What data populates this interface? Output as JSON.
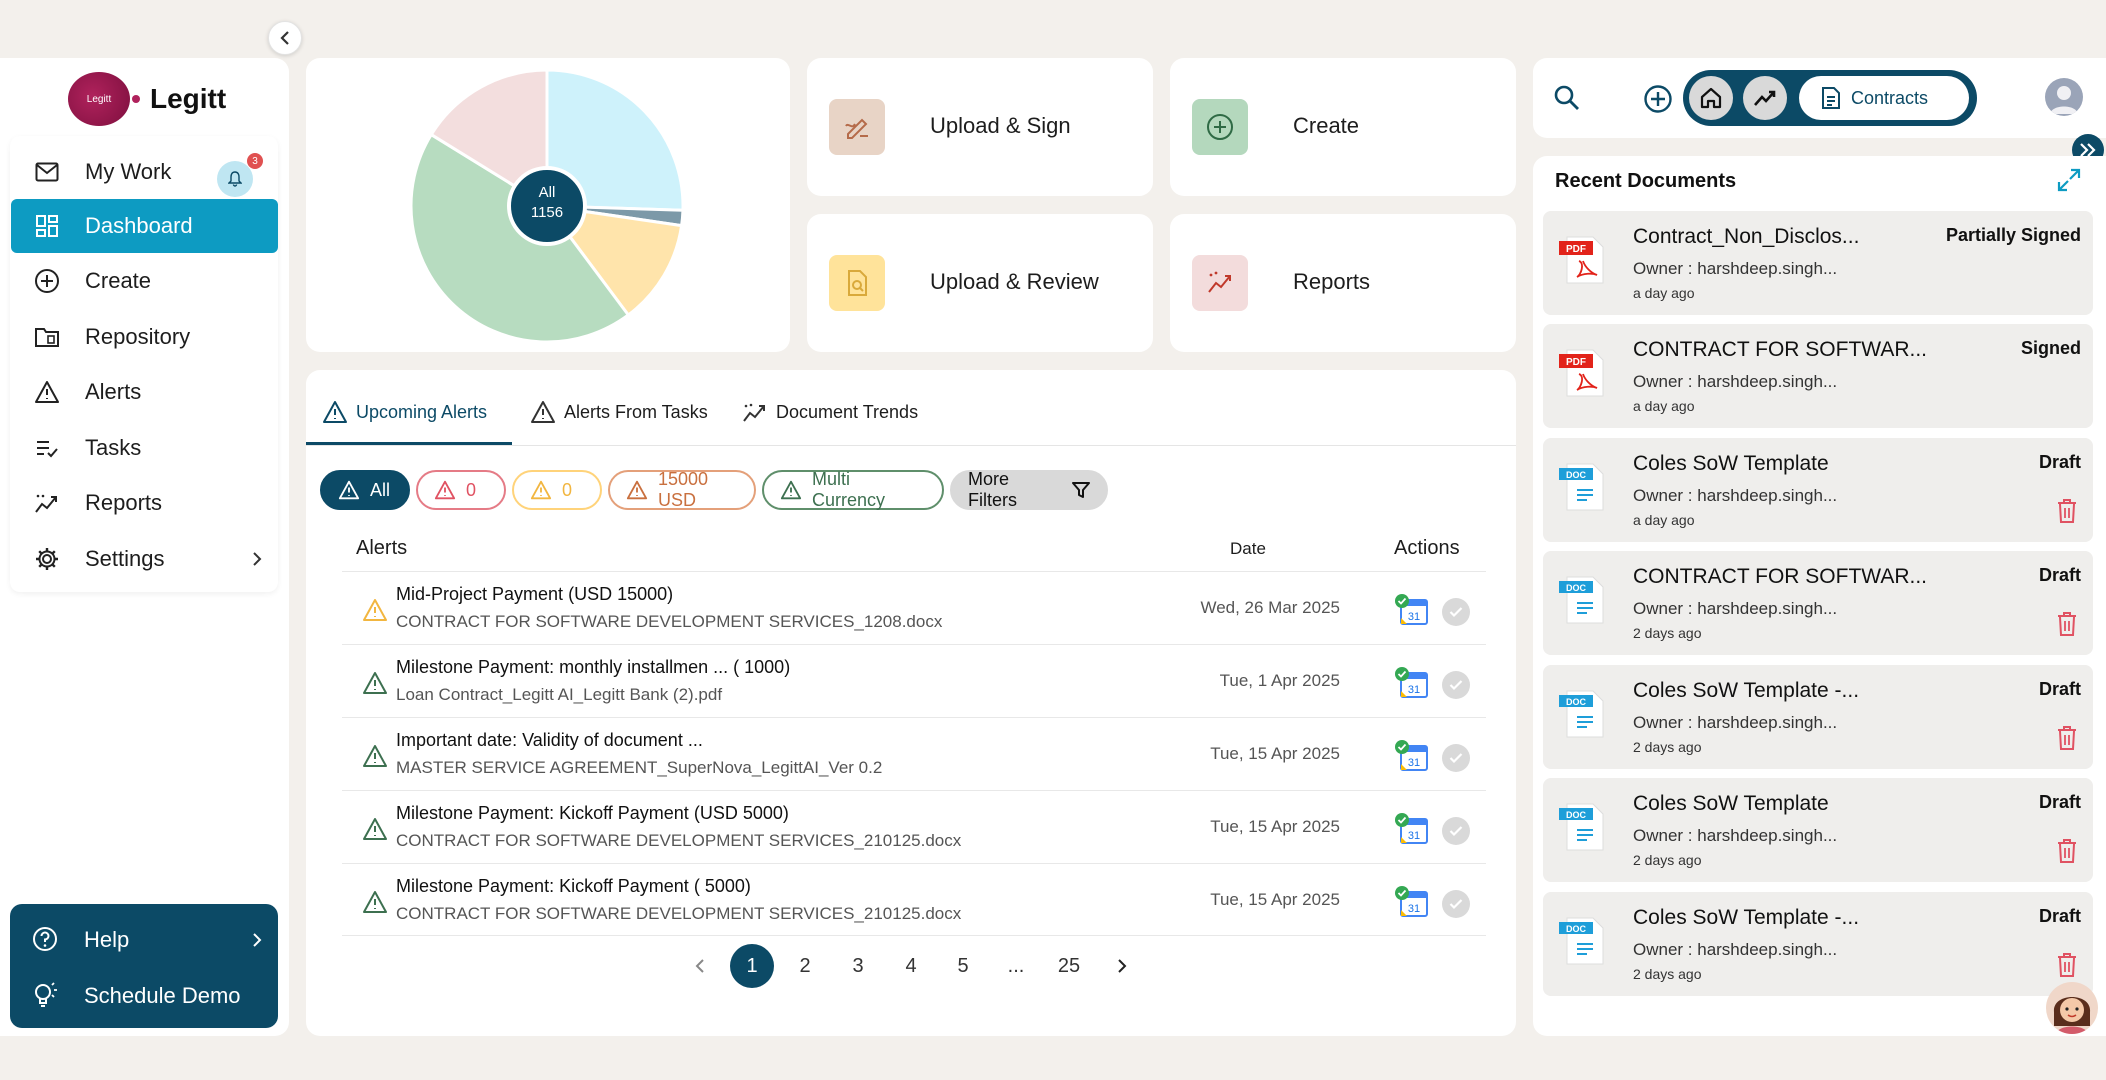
{
  "app": {
    "name": "Legitt",
    "logo_text": "Legitt"
  },
  "sidebar": {
    "items": [
      {
        "label": "My Work",
        "icon": "mail-icon",
        "badge": "3"
      },
      {
        "label": "Dashboard",
        "icon": "dashboard-icon",
        "active": true
      },
      {
        "label": "Create",
        "icon": "plus-circle-icon"
      },
      {
        "label": "Repository",
        "icon": "folder-icon"
      },
      {
        "label": "Alerts",
        "icon": "warning-icon"
      },
      {
        "label": "Tasks",
        "icon": "tasks-icon"
      },
      {
        "label": "Reports",
        "icon": "trend-icon"
      },
      {
        "label": "Settings",
        "icon": "gear-icon"
      }
    ],
    "help_label": "Help",
    "demo_label": "Schedule Demo"
  },
  "pie": {
    "center_line1": "All",
    "center_line2": "1156",
    "slices": [
      {
        "value": 0.255,
        "color": "#cef2fb"
      },
      {
        "value": 0.018,
        "color": "#7c99a8"
      },
      {
        "value": 0.125,
        "color": "#ffe4ab"
      },
      {
        "value": 0.44,
        "color": "#b7dcc0"
      },
      {
        "value": 0.162,
        "color": "#f3dede"
      }
    ]
  },
  "quick_actions": {
    "upload_sign": "Upload & Sign",
    "create": "Create",
    "upload_review": "Upload & Review",
    "reports": "Reports"
  },
  "tabs": [
    "Upcoming Alerts",
    "Alerts From Tasks",
    "Document Trends"
  ],
  "chips": [
    "All",
    "0",
    "0",
    "15000 USD",
    "Multi Currency",
    "More Filters"
  ],
  "table": {
    "headers": {
      "alerts": "Alerts",
      "date": "Date",
      "actions": "Actions"
    },
    "rows": [
      {
        "title": "Mid-Project Payment",
        "amount": "(USD 15000)",
        "file": "CONTRACT FOR SOFTWARE DEVELOPMENT SERVICES_1208.docx",
        "date": "Wed, 26 Mar 2025",
        "severity": "yellow"
      },
      {
        "title": "Milestone Payment: monthly installmen ...",
        "amount": "( 1000)",
        "file": "Loan Contract_Legitt AI_Legitt Bank (2).pdf",
        "date": "Tue, 1 Apr 2025",
        "severity": "green"
      },
      {
        "title": "Important date: Validity of document ...",
        "amount": "",
        "file": "MASTER SERVICE AGREEMENT_SuperNova_LegittAI_Ver 0.2",
        "date": "Tue, 15 Apr 2025",
        "severity": "green"
      },
      {
        "title": "Milestone Payment: Kickoff Payment",
        "amount": "(USD 5000)",
        "file": "CONTRACT FOR SOFTWARE DEVELOPMENT SERVICES_210125.docx",
        "date": "Tue, 15 Apr 2025",
        "severity": "green"
      },
      {
        "title": "Milestone Payment: Kickoff Payment",
        "amount": "( 5000)",
        "file": "CONTRACT FOR SOFTWARE DEVELOPMENT SERVICES_210125.docx",
        "date": "Tue, 15 Apr 2025",
        "severity": "green"
      }
    ]
  },
  "pagination": [
    "1",
    "2",
    "3",
    "4",
    "5",
    "...",
    "25"
  ],
  "topbar": {
    "contracts_label": "Contracts"
  },
  "recent": {
    "title": "Recent Documents",
    "docs": [
      {
        "name": "Contract_Non_Disclos...",
        "owner": "Owner : harshdeep.singh...",
        "ago": "a day ago",
        "status": "Partially Signed",
        "type": "PDF"
      },
      {
        "name": "CONTRACT FOR SOFTWAR...",
        "owner": "Owner : harshdeep.singh...",
        "ago": "a day ago",
        "status": "Signed",
        "type": "PDF"
      },
      {
        "name": "Coles SoW Template",
        "owner": "Owner : harshdeep.singh...",
        "ago": "a day ago",
        "status": "Draft",
        "type": "DOC"
      },
      {
        "name": "CONTRACT FOR SOFTWAR...",
        "owner": "Owner : harshdeep.singh...",
        "ago": "2 days ago",
        "status": "Draft",
        "type": "DOC"
      },
      {
        "name": "Coles SoW Template -...",
        "owner": "Owner : harshdeep.singh...",
        "ago": "2 days ago",
        "status": "Draft",
        "type": "DOC"
      },
      {
        "name": "Coles SoW Template",
        "owner": "Owner : harshdeep.singh...",
        "ago": "2 days ago",
        "status": "Draft",
        "type": "DOC"
      },
      {
        "name": "Coles SoW Template -...",
        "owner": "Owner : harshdeep.singh...",
        "ago": "2 days ago",
        "status": "Draft",
        "type": "DOC"
      }
    ]
  }
}
